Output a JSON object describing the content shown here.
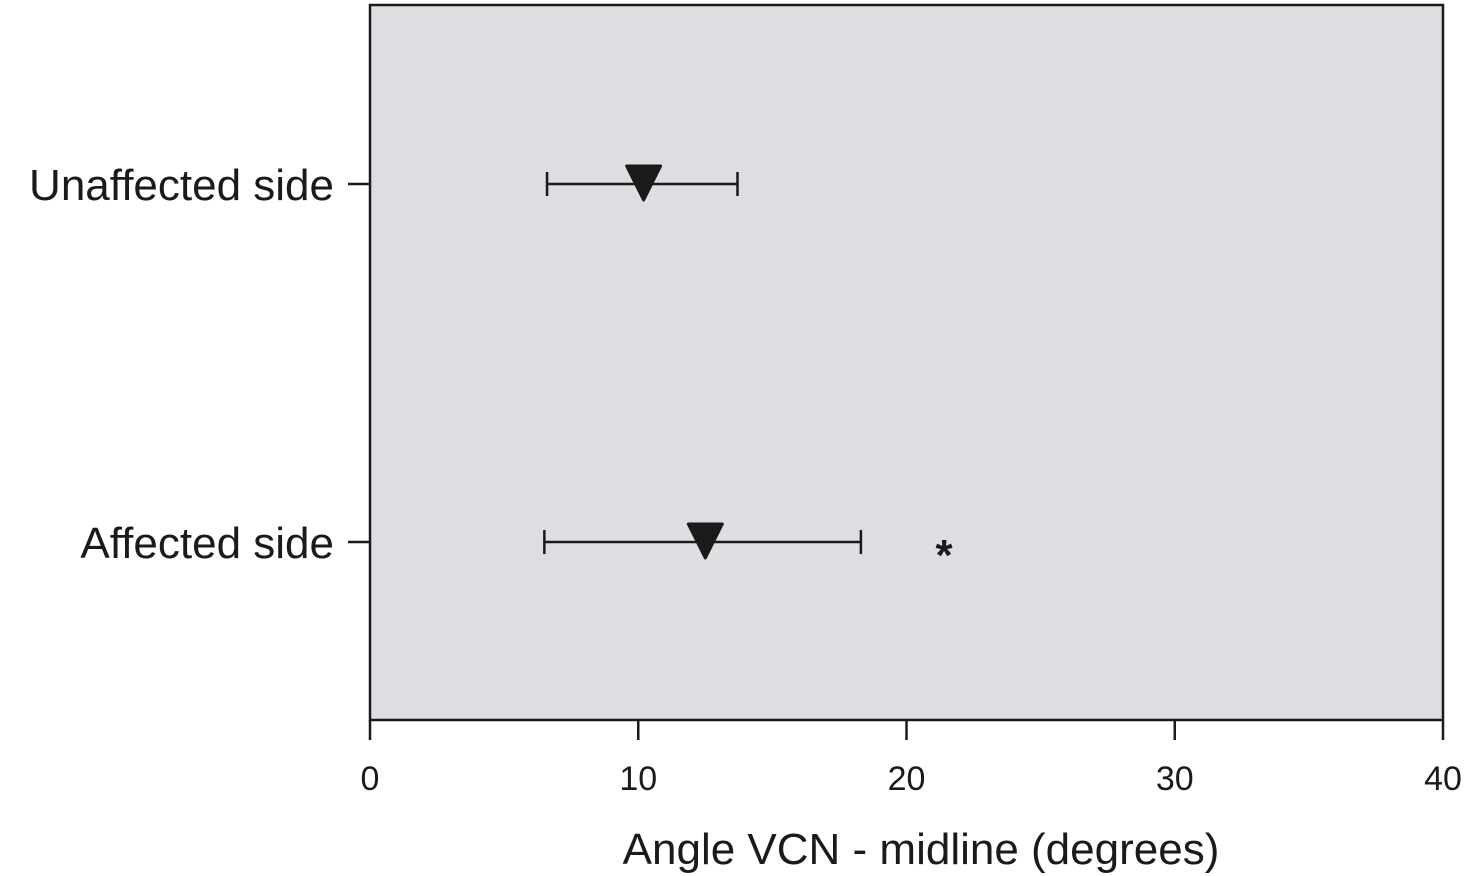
{
  "chart_data": {
    "type": "scatter",
    "title": "",
    "xlabel": "Angle VCN - midline (degrees)",
    "ylabel": "",
    "xlim": [
      0,
      40
    ],
    "x_ticks": [
      0,
      10,
      20,
      30,
      40
    ],
    "x_tick_labels": [
      "0",
      "10",
      "20",
      "30",
      "40"
    ],
    "categories": [
      "Unaffected side",
      "Affected side"
    ],
    "points": [
      {
        "category": "Unaffected side",
        "value": 10.2,
        "error_low": 6.6,
        "error_high": 13.7
      },
      {
        "category": "Affected side",
        "value": 12.5,
        "error_low": 6.5,
        "error_high": 18.3
      }
    ],
    "annotations": [
      {
        "category": "Affected side",
        "x": 21.4,
        "text": "*"
      }
    ],
    "marker": "down-triangle",
    "grid": false,
    "colors": {
      "plot_background": "#dcdee1",
      "axis": "#1a1a1a",
      "marker": "#1a1a1a"
    }
  }
}
